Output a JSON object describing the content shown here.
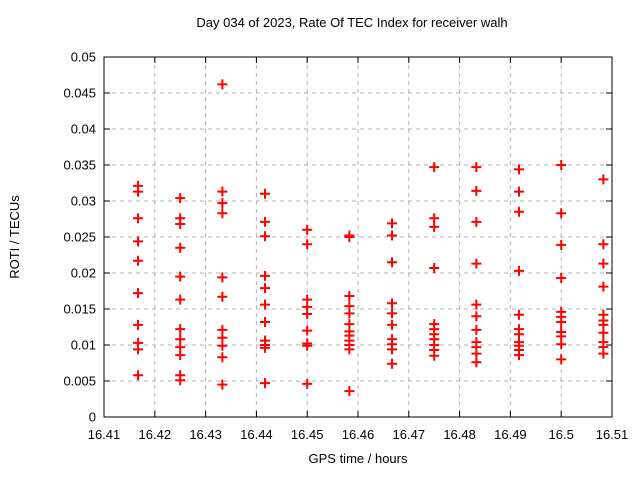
{
  "chart_data": {
    "type": "scatter",
    "title": "Day 034 of 2023, Rate Of TEC Index for receiver walh",
    "xlabel": "GPS time / hours",
    "ylabel": "ROTI / TECUs",
    "xlim": [
      16.41,
      16.51
    ],
    "ylim": [
      0,
      0.05
    ],
    "grid": true,
    "legend": "none",
    "marker_shape": "plus",
    "marker_color": "#ff0000",
    "grid_color": "#b0b0b0",
    "axis_color": "#000000",
    "x_ticks": [
      {
        "value": 16.41,
        "label": "16.41"
      },
      {
        "value": 16.42,
        "label": "16.42"
      },
      {
        "value": 16.43,
        "label": "16.43"
      },
      {
        "value": 16.44,
        "label": "16.44"
      },
      {
        "value": 16.45,
        "label": "16.45"
      },
      {
        "value": 16.46,
        "label": "16.46"
      },
      {
        "value": 16.47,
        "label": "16.47"
      },
      {
        "value": 16.48,
        "label": "16.48"
      },
      {
        "value": 16.49,
        "label": "16.49"
      },
      {
        "value": 16.5,
        "label": "16.5"
      },
      {
        "value": 16.51,
        "label": "16.51"
      }
    ],
    "y_ticks": [
      {
        "value": 0,
        "label": "0"
      },
      {
        "value": 0.005,
        "label": "0.005"
      },
      {
        "value": 0.01,
        "label": "0.01"
      },
      {
        "value": 0.015,
        "label": "0.015"
      },
      {
        "value": 0.02,
        "label": "0.02"
      },
      {
        "value": 0.025,
        "label": "0.025"
      },
      {
        "value": 0.03,
        "label": "0.03"
      },
      {
        "value": 0.035,
        "label": "0.035"
      },
      {
        "value": 0.04,
        "label": "0.04"
      },
      {
        "value": 0.045,
        "label": "0.045"
      },
      {
        "value": 0.05,
        "label": "0.05"
      }
    ],
    "series": [
      {
        "name": "ROTI",
        "points": [
          [
            16.4167,
            0.0321
          ],
          [
            16.4167,
            0.0313
          ],
          [
            16.4167,
            0.0276
          ],
          [
            16.4167,
            0.0244
          ],
          [
            16.4167,
            0.0217
          ],
          [
            16.4167,
            0.0172
          ],
          [
            16.4167,
            0.0128
          ],
          [
            16.4167,
            0.0103
          ],
          [
            16.4167,
            0.0094
          ],
          [
            16.4167,
            0.0058
          ],
          [
            16.425,
            0.0304
          ],
          [
            16.425,
            0.0276
          ],
          [
            16.425,
            0.0268
          ],
          [
            16.425,
            0.0235
          ],
          [
            16.425,
            0.0195
          ],
          [
            16.425,
            0.0163
          ],
          [
            16.425,
            0.0122
          ],
          [
            16.425,
            0.0108
          ],
          [
            16.425,
            0.0097
          ],
          [
            16.425,
            0.0086
          ],
          [
            16.425,
            0.0058
          ],
          [
            16.425,
            0.0051
          ],
          [
            16.4333,
            0.0462
          ],
          [
            16.4333,
            0.0313
          ],
          [
            16.4333,
            0.0297
          ],
          [
            16.4333,
            0.0283
          ],
          [
            16.4333,
            0.0194
          ],
          [
            16.4333,
            0.0167
          ],
          [
            16.4333,
            0.0121
          ],
          [
            16.4333,
            0.011
          ],
          [
            16.4333,
            0.0099
          ],
          [
            16.4333,
            0.0083
          ],
          [
            16.4333,
            0.0045
          ],
          [
            16.4417,
            0.031
          ],
          [
            16.4417,
            0.0271
          ],
          [
            16.4417,
            0.0251
          ],
          [
            16.4417,
            0.0196
          ],
          [
            16.4417,
            0.0179
          ],
          [
            16.4417,
            0.0156
          ],
          [
            16.4417,
            0.0132
          ],
          [
            16.4417,
            0.0106
          ],
          [
            16.4417,
            0.01
          ],
          [
            16.4417,
            0.0096
          ],
          [
            16.4417,
            0.0047
          ],
          [
            16.45,
            0.026
          ],
          [
            16.45,
            0.024
          ],
          [
            16.45,
            0.0163
          ],
          [
            16.45,
            0.0153
          ],
          [
            16.45,
            0.0143
          ],
          [
            16.45,
            0.012
          ],
          [
            16.45,
            0.0102
          ],
          [
            16.45,
            0.0099
          ],
          [
            16.45,
            0.0046
          ],
          [
            16.4583,
            0.0252
          ],
          [
            16.4583,
            0.025
          ],
          [
            16.4583,
            0.0168
          ],
          [
            16.4583,
            0.0154
          ],
          [
            16.4583,
            0.0144
          ],
          [
            16.4583,
            0.0129
          ],
          [
            16.4583,
            0.0119
          ],
          [
            16.4583,
            0.0113
          ],
          [
            16.4583,
            0.0106
          ],
          [
            16.4583,
            0.01
          ],
          [
            16.4583,
            0.0094
          ],
          [
            16.4583,
            0.0036
          ],
          [
            16.4667,
            0.0269
          ],
          [
            16.4667,
            0.0252
          ],
          [
            16.4667,
            0.0215
          ],
          [
            16.4667,
            0.0158
          ],
          [
            16.4667,
            0.0144
          ],
          [
            16.4667,
            0.0128
          ],
          [
            16.4667,
            0.0108
          ],
          [
            16.4667,
            0.0101
          ],
          [
            16.4667,
            0.0094
          ],
          [
            16.4667,
            0.0074
          ],
          [
            16.475,
            0.0347
          ],
          [
            16.475,
            0.0276
          ],
          [
            16.475,
            0.0264
          ],
          [
            16.475,
            0.0207
          ],
          [
            16.475,
            0.0129
          ],
          [
            16.475,
            0.0122
          ],
          [
            16.475,
            0.0115
          ],
          [
            16.475,
            0.0108
          ],
          [
            16.475,
            0.01
          ],
          [
            16.475,
            0.0093
          ],
          [
            16.475,
            0.0085
          ],
          [
            16.4833,
            0.0347
          ],
          [
            16.4833,
            0.0314
          ],
          [
            16.4833,
            0.0271
          ],
          [
            16.4833,
            0.0213
          ],
          [
            16.4833,
            0.0156
          ],
          [
            16.4833,
            0.014
          ],
          [
            16.4833,
            0.0121
          ],
          [
            16.4833,
            0.0104
          ],
          [
            16.4833,
            0.0097
          ],
          [
            16.4833,
            0.0088
          ],
          [
            16.4833,
            0.0076
          ],
          [
            16.4917,
            0.0344
          ],
          [
            16.4917,
            0.0313
          ],
          [
            16.4917,
            0.0285
          ],
          [
            16.4917,
            0.0203
          ],
          [
            16.4917,
            0.0142
          ],
          [
            16.4917,
            0.0122
          ],
          [
            16.4917,
            0.0115
          ],
          [
            16.4917,
            0.0104
          ],
          [
            16.4917,
            0.0099
          ],
          [
            16.4917,
            0.0093
          ],
          [
            16.4917,
            0.0086
          ],
          [
            16.5,
            0.035
          ],
          [
            16.5,
            0.0283
          ],
          [
            16.5,
            0.0239
          ],
          [
            16.5,
            0.0193
          ],
          [
            16.5,
            0.0146
          ],
          [
            16.5,
            0.0139
          ],
          [
            16.5,
            0.0132
          ],
          [
            16.5,
            0.0118
          ],
          [
            16.5,
            0.0112
          ],
          [
            16.5,
            0.0101
          ],
          [
            16.5,
            0.008
          ],
          [
            16.5083,
            0.033
          ],
          [
            16.5083,
            0.024
          ],
          [
            16.5083,
            0.0213
          ],
          [
            16.5083,
            0.0181
          ],
          [
            16.5083,
            0.0142
          ],
          [
            16.5083,
            0.0134
          ],
          [
            16.5083,
            0.0128
          ],
          [
            16.5083,
            0.0117
          ],
          [
            16.5083,
            0.0104
          ],
          [
            16.5083,
            0.0097
          ],
          [
            16.5083,
            0.0088
          ]
        ]
      }
    ]
  }
}
